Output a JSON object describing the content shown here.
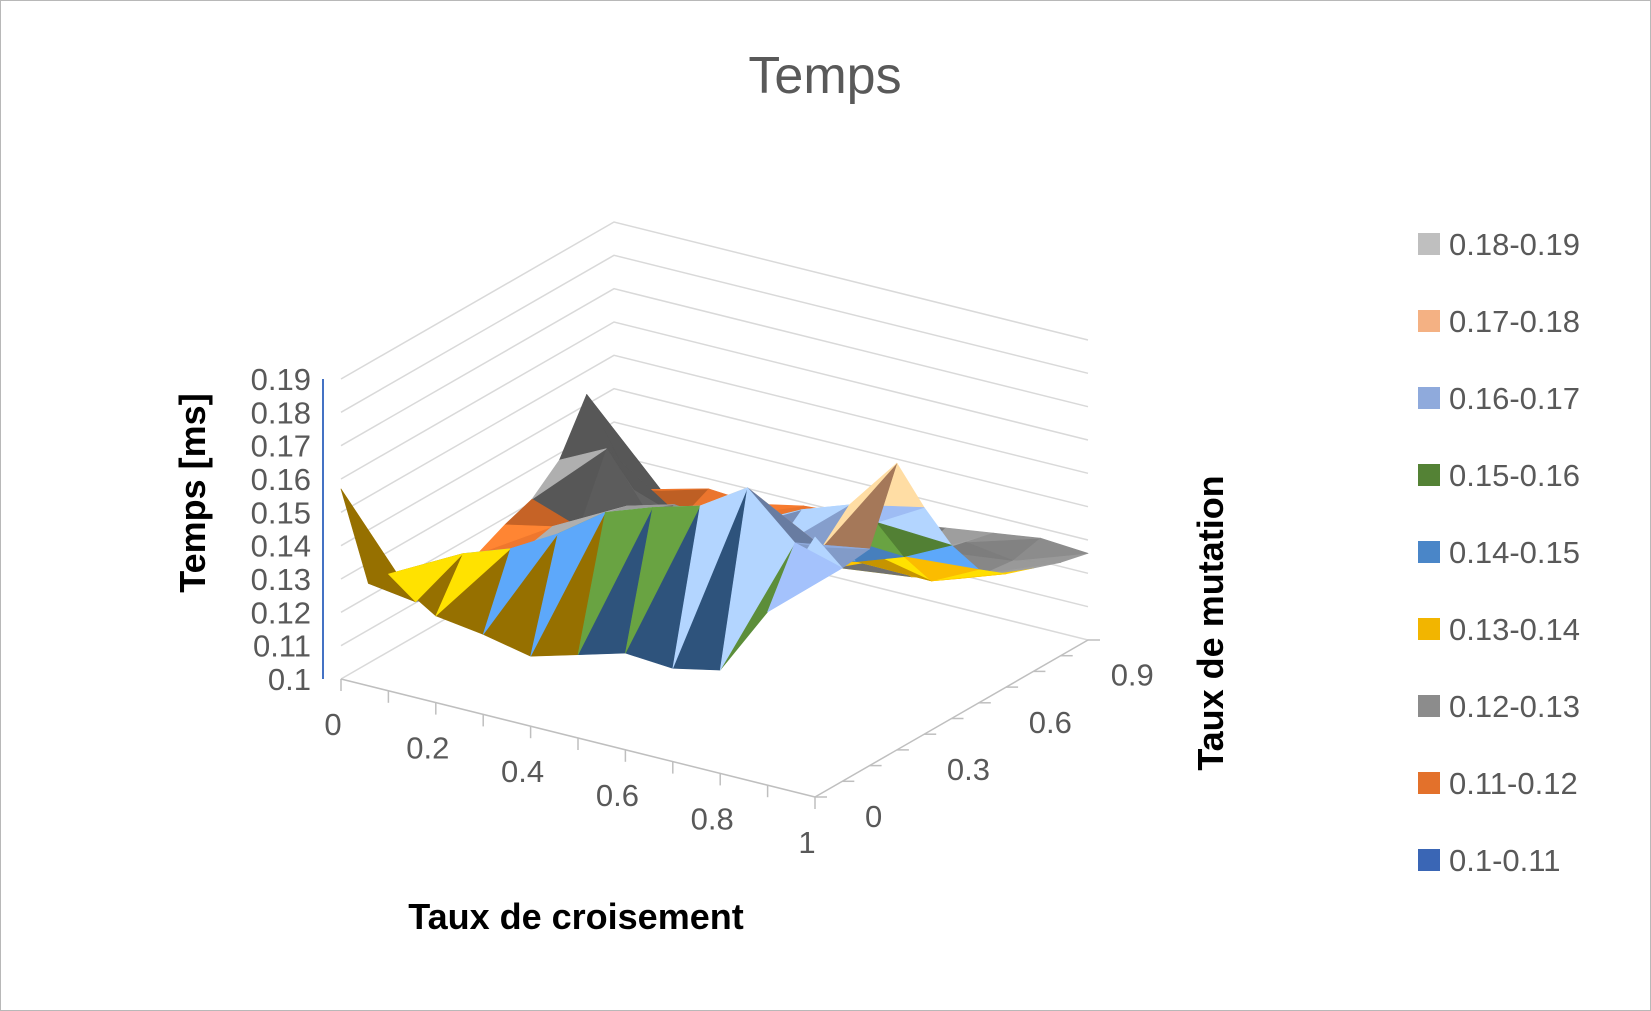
{
  "chart_data": {
    "type": "surface",
    "title": "Temps",
    "xlabel": "Taux de croisement",
    "ylabel": "Taux de mutation",
    "zlabel": "Temps [ms]",
    "x_ticks": [
      "0",
      "0.2",
      "0.4",
      "0.6",
      "0.8",
      "1"
    ],
    "y_ticks": [
      "0",
      "0.3",
      "0.6",
      "0.9"
    ],
    "z_ticks": [
      "0.1",
      "0.11",
      "0.12",
      "0.13",
      "0.14",
      "0.15",
      "0.16",
      "0.17",
      "0.18",
      "0.19"
    ],
    "zlim": [
      0.1,
      0.19
    ],
    "x": [
      0,
      0.1,
      0.2,
      0.3,
      0.4,
      0.5,
      0.6,
      0.7,
      0.8,
      0.9,
      1
    ],
    "y": [
      0,
      0.1,
      0.2,
      0.3,
      0.4,
      0.5,
      0.6,
      0.7,
      0.8,
      0.9,
      1
    ],
    "z": [
      [
        0.157,
        0.135,
        0.126,
        0.124,
        0.121,
        0.125,
        0.129,
        0.128,
        0.131,
        0.152,
        0.178
      ],
      [
        0.124,
        0.122,
        0.14,
        0.145,
        0.153,
        0.163,
        0.168,
        0.172,
        0.181,
        0.168,
        0.164
      ],
      [
        0.117,
        0.128,
        0.126,
        0.137,
        0.142,
        0.147,
        0.152,
        0.16,
        0.158,
        0.162,
        0.165
      ],
      [
        0.113,
        0.126,
        0.124,
        0.128,
        0.135,
        0.143,
        0.149,
        0.158,
        0.165,
        0.17,
        0.186
      ],
      [
        0.116,
        0.119,
        0.128,
        0.129,
        0.123,
        0.131,
        0.138,
        0.144,
        0.153,
        0.16,
        0.168
      ],
      [
        0.114,
        0.119,
        0.122,
        0.13,
        0.126,
        0.134,
        0.128,
        0.137,
        0.14,
        0.145,
        0.152
      ],
      [
        0.118,
        0.121,
        0.128,
        0.124,
        0.126,
        0.121,
        0.125,
        0.13,
        0.136,
        0.133,
        0.14
      ],
      [
        0.121,
        0.116,
        0.126,
        0.13,
        0.128,
        0.124,
        0.127,
        0.133,
        0.126,
        0.129,
        0.134
      ],
      [
        0.128,
        0.135,
        0.116,
        0.119,
        0.118,
        0.121,
        0.128,
        0.124,
        0.129,
        0.126,
        0.131
      ],
      [
        0.143,
        0.118,
        0.113,
        0.117,
        0.119,
        0.118,
        0.124,
        0.12,
        0.127,
        0.125,
        0.128
      ],
      [
        0.105,
        0.113,
        0.117,
        0.116,
        0.119,
        0.12,
        0.121,
        0.123,
        0.125,
        0.127,
        0.126
      ]
    ],
    "legend": [
      {
        "label": "0.18-0.19",
        "color": "#bfbfbf",
        "min": 0.18,
        "max": 0.19
      },
      {
        "label": "0.17-0.18",
        "color": "#f4b183",
        "min": 0.17,
        "max": 0.18
      },
      {
        "label": "0.16-0.17",
        "color": "#8faadc",
        "min": 0.16,
        "max": 0.17
      },
      {
        "label": "0.15-0.16",
        "color": "#548235",
        "min": 0.15,
        "max": 0.16
      },
      {
        "label": "0.14-0.15",
        "color": "#4a86c8",
        "min": 0.14,
        "max": 0.15
      },
      {
        "label": "0.13-0.14",
        "color": "#f2b500",
        "min": 0.13,
        "max": 0.14
      },
      {
        "label": "0.12-0.13",
        "color": "#8c8c8c",
        "min": 0.12,
        "max": 0.13
      },
      {
        "label": "0.11-0.12",
        "color": "#e3712b",
        "min": 0.11,
        "max": 0.12
      },
      {
        "label": "0.1-0.11",
        "color": "#3a66b5",
        "min": 0.1,
        "max": 0.11
      }
    ],
    "legend_position": "right"
  }
}
